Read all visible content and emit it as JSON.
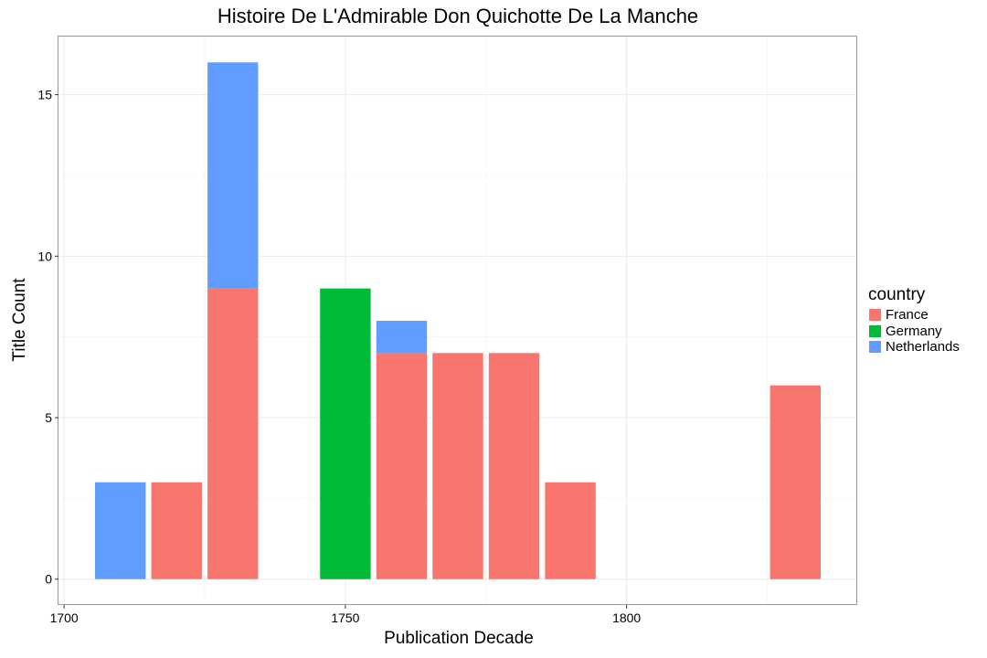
{
  "chart_data": {
    "type": "bar",
    "stacked": true,
    "title": "Histoire De L'Admirable Don Quichotte De La Manche",
    "xlabel": "Publication Decade",
    "ylabel": "Title Count",
    "xlim": [
      1699,
      1841
    ],
    "ylim": [
      -0.8,
      16.8
    ],
    "x_ticks": [
      1700,
      1750,
      1800
    ],
    "y_ticks": [
      0,
      5,
      10,
      15
    ],
    "bar_width": 9,
    "grid": true,
    "legend_title": "country",
    "legend_position": "right",
    "series": [
      {
        "name": "France",
        "color": "#F8766D",
        "points": [
          [
            1720,
            3
          ],
          [
            1730,
            9
          ],
          [
            1760,
            7
          ],
          [
            1770,
            7
          ],
          [
            1780,
            7
          ],
          [
            1790,
            3
          ],
          [
            1830,
            6
          ]
        ]
      },
      {
        "name": "Germany",
        "color": "#00BA38",
        "points": [
          [
            1750,
            9
          ]
        ]
      },
      {
        "name": "Netherlands",
        "color": "#619CFF",
        "points": [
          [
            1710,
            3
          ],
          [
            1730,
            7
          ],
          [
            1760,
            1
          ]
        ]
      }
    ]
  }
}
